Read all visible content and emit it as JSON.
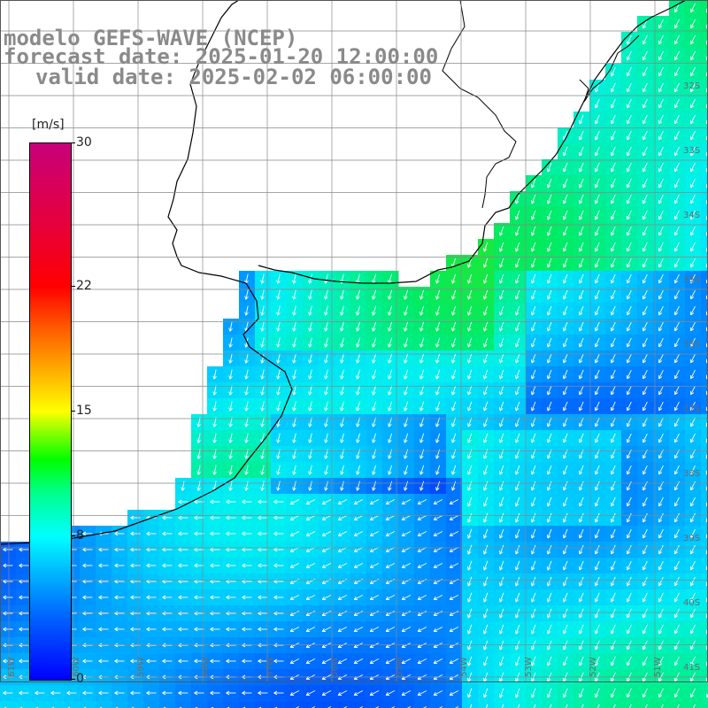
{
  "title": {
    "line1": "modelo GEFS-WAVE (NCEP)",
    "line2": "forecast date: 2025-01-20 12:00:00",
    "line3": "valid date: 2025-02-02 06:00:00"
  },
  "colorbar": {
    "unit": "[m/s]",
    "min": 0,
    "max": 30,
    "ticks": [
      "30",
      "22",
      "15",
      "8",
      "0"
    ],
    "tick_values": [
      30,
      22,
      15,
      8,
      0
    ],
    "colors": [
      "#0000ff",
      "#00ccff",
      "#00ffff",
      "#00ff00",
      "#ffff00",
      "#ff0000",
      "#c8007a"
    ]
  },
  "map": {
    "latitude_labels": [
      "32S",
      "33S",
      "34S",
      "35S",
      "36S",
      "37S",
      "38S",
      "39S",
      "40S",
      "41S"
    ],
    "longitude_labels": [
      "61W",
      "60W",
      "59W",
      "58W",
      "57W",
      "56W",
      "55W",
      "54W",
      "53W",
      "52W",
      "51W"
    ],
    "field": "wind speed",
    "land_color": "#ffffff",
    "arrow_color": "#ffffff"
  }
}
